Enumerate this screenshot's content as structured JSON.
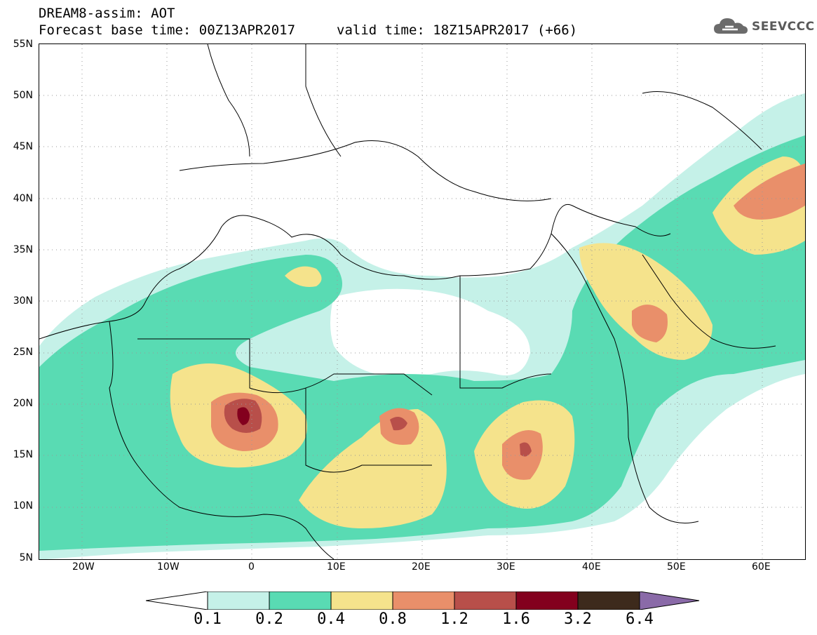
{
  "header": {
    "line1": "DREAM8-assim: AOT",
    "line2": "Forecast base time: 00Z13APR2017",
    "valid": "valid time: 18Z15APR2017 (+66)"
  },
  "logo": {
    "text": "SEEVCCC",
    "icon": "cloud-icon"
  },
  "map": {
    "lat_labels": [
      "55N",
      "50N",
      "45N",
      "40N",
      "35N",
      "30N",
      "25N",
      "20N",
      "15N",
      "10N",
      "5N"
    ],
    "lon_labels": [
      "20W",
      "10W",
      "0",
      "10E",
      "20E",
      "30E",
      "40E",
      "50E",
      "60E"
    ],
    "lat_range": [
      5,
      55
    ],
    "lon_range": [
      -25,
      65
    ],
    "grid": "dotted"
  },
  "colorbar": {
    "labels": [
      "0.1",
      "0.2",
      "0.4",
      "0.8",
      "1.2",
      "1.6",
      "3.2",
      "6.4"
    ],
    "colors": [
      "#ffffff",
      "#c5f1e8",
      "#59dbb3",
      "#f5e38c",
      "#e98f6a",
      "#b84f4a",
      "#83001e",
      "#3d2a1c",
      "#8a6aa8"
    ]
  }
}
